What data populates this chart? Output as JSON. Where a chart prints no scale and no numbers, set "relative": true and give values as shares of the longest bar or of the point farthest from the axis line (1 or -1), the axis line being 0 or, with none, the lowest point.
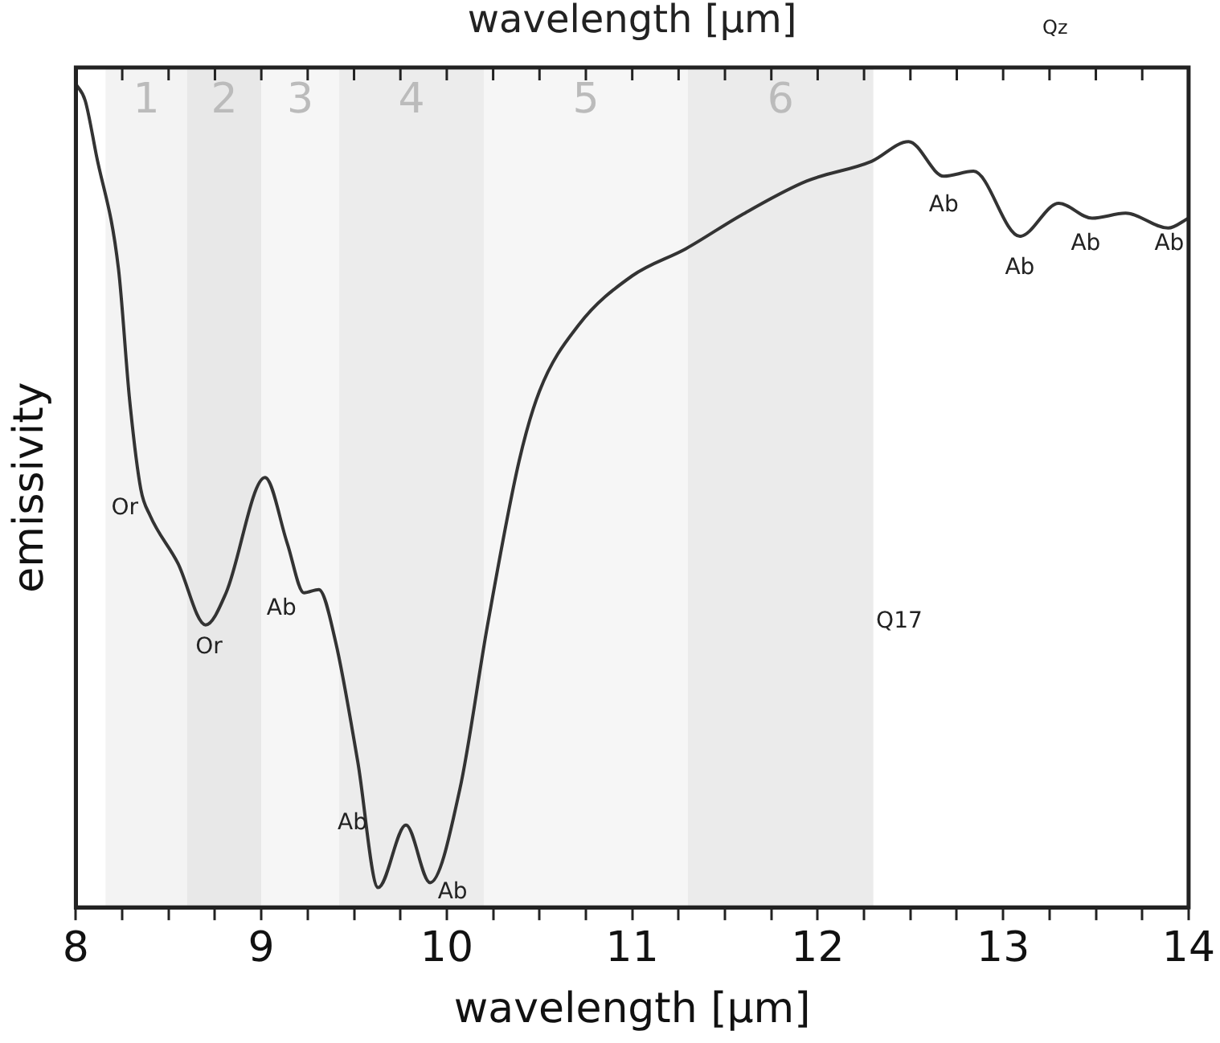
{
  "chart_data": {
    "type": "line",
    "relative": true,
    "xlabel": "wavelength [μm]",
    "ylabel": "emissivity",
    "x2label": "wavelength [μm]",
    "xlim": [
      8,
      14
    ],
    "xticks": [
      8,
      {
        "value": 8.25,
        "label": null
      },
      {
        "value": 8.5,
        "label": null
      },
      {
        "value": 8.75,
        "label": null
      },
      9,
      {
        "value": 9.25,
        "label": null
      },
      {
        "value": 9.5,
        "label": null
      },
      {
        "value": 9.75,
        "label": null
      },
      10,
      {
        "value": 10.25,
        "label": null
      },
      {
        "value": 10.5,
        "label": null
      },
      {
        "value": 10.75,
        "label": null
      },
      11,
      {
        "value": 11.25,
        "label": null
      },
      {
        "value": 11.5,
        "label": null
      },
      {
        "value": 11.75,
        "label": null
      },
      12,
      {
        "value": 12.25,
        "label": null
      },
      {
        "value": 12.5,
        "label": null
      },
      {
        "value": 12.75,
        "label": null
      },
      13,
      {
        "value": 13.25,
        "label": null
      },
      {
        "value": 13.5,
        "label": null
      },
      {
        "value": 13.75,
        "label": null
      },
      14
    ],
    "x": [
      8.0,
      8.05,
      8.11,
      8.23,
      8.29,
      8.35,
      8.4,
      8.55,
      8.7,
      8.81,
      9.02,
      9.14,
      9.23,
      9.31,
      9.4,
      9.52,
      9.63,
      9.78,
      9.91,
      10.07,
      10.22,
      10.39,
      10.5,
      10.71,
      11.0,
      11.29,
      11.59,
      11.94,
      12.29,
      12.49,
      12.68,
      12.84,
      13.09,
      13.3,
      13.48,
      13.66,
      13.89,
      14.0
    ],
    "series": [
      {
        "color": "#333333",
        "values": [
          1.0,
          0.98,
          0.914,
          0.775,
          0.616,
          0.508,
          0.476,
          0.418,
          0.343,
          0.382,
          0.522,
          0.442,
          0.382,
          0.386,
          0.323,
          0.177,
          0.024,
          0.1,
          0.03,
          0.143,
          0.343,
          0.542,
          0.627,
          0.707,
          0.767,
          0.8,
          0.841,
          0.882,
          0.906,
          0.93,
          0.888,
          0.894,
          0.815,
          0.855,
          0.837,
          0.843,
          0.825,
          0.837
        ]
      }
    ],
    "bands": [
      {
        "axis": "x",
        "from": 8.16,
        "to": 8.6,
        "label": "1",
        "color": "#f3f3f3"
      },
      {
        "axis": "x",
        "from": 8.6,
        "to": 9.0,
        "label": "2",
        "color": "#e8e8e8"
      },
      {
        "axis": "x",
        "from": 9.0,
        "to": 9.42,
        "label": "3",
        "color": "#f6f6f6"
      },
      {
        "axis": "x",
        "from": 9.42,
        "to": 10.2,
        "label": "4",
        "color": "#ececec"
      },
      {
        "axis": "x",
        "from": 10.2,
        "to": 11.3,
        "label": "5",
        "color": "#f6f6f6"
      },
      {
        "axis": "x",
        "from": 11.3,
        "to": 12.3,
        "label": "6",
        "color": "#ebebeb"
      }
    ],
    "annotations": [
      {
        "text": "Or",
        "x": 8.35,
        "y": 0.508
      },
      {
        "text": "Or",
        "x": 8.7,
        "y": 0.343
      },
      {
        "text": "Ab",
        "x": 9.23,
        "y": 0.382
      },
      {
        "text": "Ab",
        "x": 9.63,
        "y": 0.024
      },
      {
        "text": "Ab",
        "x": 9.91,
        "y": 0.03
      },
      {
        "text": "Ab",
        "x": 12.68,
        "y": 0.888
      },
      {
        "text": "Ab",
        "x": 13.09,
        "y": 0.815
      },
      {
        "text": "Ab",
        "x": 13.48,
        "y": 0.837
      },
      {
        "text": "Ab",
        "x": 14.0,
        "y": 0.837
      },
      "Q17",
      "Qz"
    ],
    "grid": false,
    "legend": false,
    "tick_labels": "x",
    "line_style": "solid",
    "marker": "none"
  }
}
